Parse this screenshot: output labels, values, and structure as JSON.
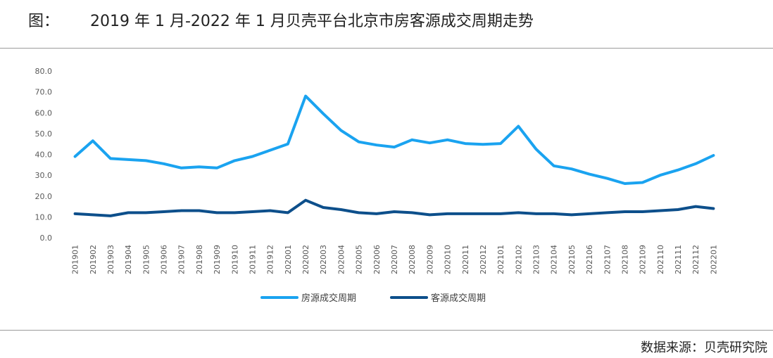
{
  "header": {
    "figure_label": "图：",
    "title": "2019 年 1 月-2022 年 1 月贝壳平台北京市房客源成交周期走势"
  },
  "footer": {
    "source": "数据来源：贝壳研究院"
  },
  "colors": {
    "listing_series": "#1aa3f0",
    "client_series": "#0d4f8b",
    "axis_text": "#595959",
    "rule": "#9a9a9a"
  },
  "chart_data": {
    "type": "line",
    "categories": [
      "201901",
      "201902",
      "201903",
      "201904",
      "201905",
      "201906",
      "201907",
      "201908",
      "201909",
      "201910",
      "201911",
      "201912",
      "202001",
      "202002",
      "202003",
      "202004",
      "202005",
      "202006",
      "202007",
      "202008",
      "202009",
      "202010",
      "202011",
      "202012",
      "202101",
      "202102",
      "202103",
      "202104",
      "202105",
      "202106",
      "202107",
      "202108",
      "202109",
      "202110",
      "202111",
      "202112",
      "202201"
    ],
    "y_ticks": [
      "0.0",
      "10.0",
      "20.0",
      "30.0",
      "40.0",
      "50.0",
      "60.0",
      "70.0",
      "80.0"
    ],
    "ylim": [
      0,
      80
    ],
    "grid": false,
    "legend_position": "bottom",
    "series": [
      {
        "name": "房源成交周期",
        "values": [
          39.0,
          46.5,
          38.0,
          37.5,
          37.0,
          35.5,
          33.5,
          34.0,
          33.5,
          37.0,
          39.0,
          42.0,
          45.0,
          68.0,
          59.5,
          51.5,
          46.0,
          44.5,
          43.5,
          47.0,
          45.5,
          47.0,
          45.2,
          44.8,
          45.2,
          53.5,
          42.5,
          34.5,
          33.0,
          30.5,
          28.5,
          26.0,
          26.5,
          30.0,
          32.5,
          35.5,
          39.5
        ]
      },
      {
        "name": "客源成交周期",
        "values": [
          11.5,
          11.0,
          10.5,
          12.0,
          12.0,
          12.5,
          13.0,
          13.0,
          12.0,
          12.0,
          12.5,
          13.0,
          12.0,
          18.0,
          14.5,
          13.5,
          12.0,
          11.5,
          12.5,
          12.0,
          11.0,
          11.5,
          11.5,
          11.5,
          11.5,
          12.0,
          11.5,
          11.5,
          11.0,
          11.5,
          12.0,
          12.5,
          12.5,
          13.0,
          13.5,
          15.0,
          14.0
        ]
      }
    ]
  }
}
